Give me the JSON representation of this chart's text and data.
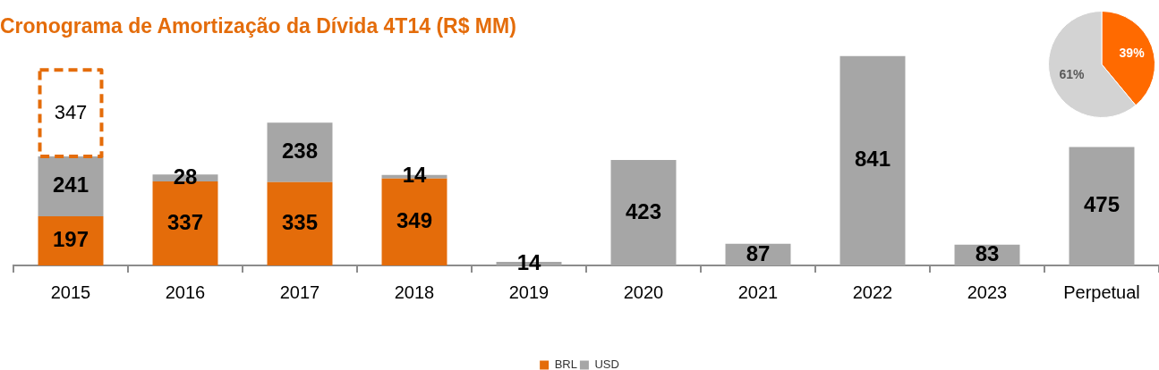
{
  "chart_data": [
    {
      "type": "bar",
      "title": "Cronograma de Amortização da Dívida 4T14 (R$ MM)",
      "categories": [
        "2015",
        "2016",
        "2017",
        "2018",
        "2019",
        "2020",
        "2021",
        "2022",
        "2023",
        "Perpetual"
      ],
      "stacked": true,
      "series": [
        {
          "name": "BRL",
          "color": "#e46c0a",
          "values": [
            197,
            337,
            335,
            349,
            null,
            null,
            null,
            null,
            null,
            null
          ]
        },
        {
          "name": "USD",
          "color": "#a6a6a6",
          "values": [
            241,
            28,
            238,
            14,
            14,
            423,
            87,
            841,
            83,
            475
          ]
        },
        {
          "color": "#e46c0a",
          "line_style": "dashed",
          "values": [
            347,
            null,
            null,
            null,
            null,
            null,
            null,
            null,
            null,
            null
          ]
        }
      ],
      "data_labels": true,
      "legend": "bottom",
      "grid": false
    },
    {
      "type": "pie",
      "categories": [
        null,
        null
      ],
      "values": [
        39,
        61
      ],
      "colors": [
        "#ff6a00",
        "#d3d3d3"
      ],
      "value_labels": [
        "39%",
        "61%"
      ],
      "legend": false
    }
  ]
}
